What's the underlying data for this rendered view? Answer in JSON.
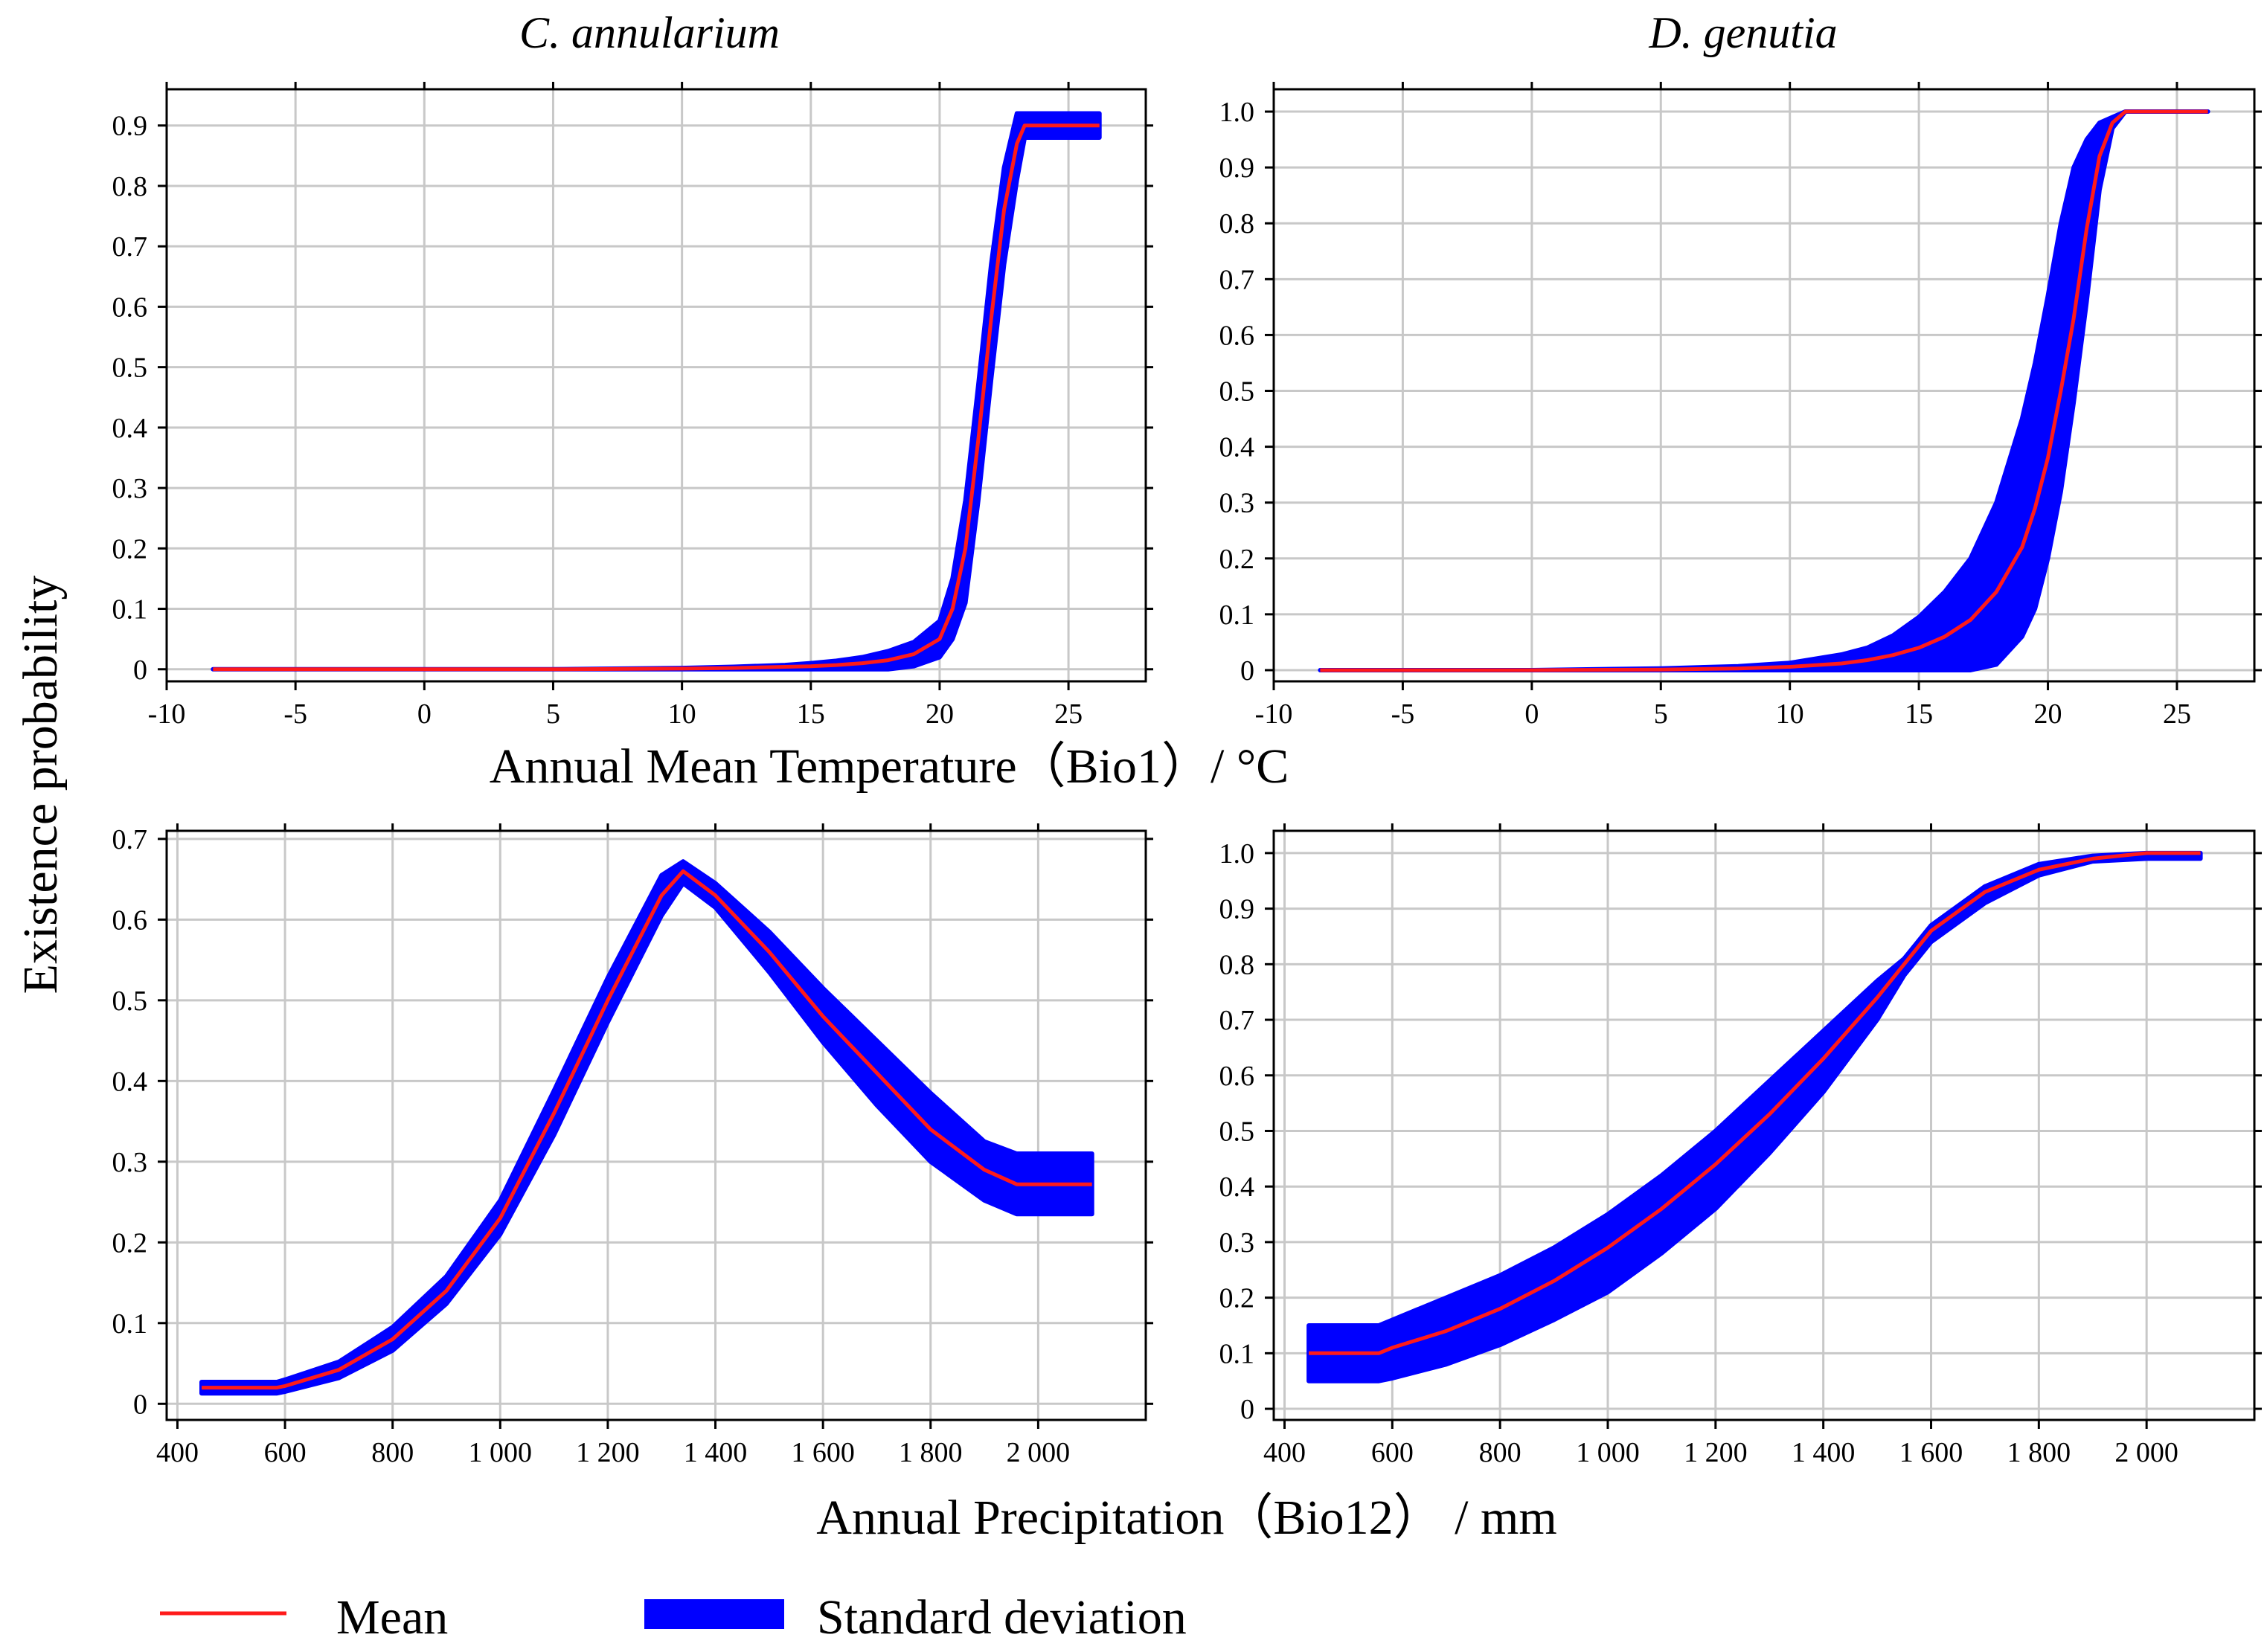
{
  "colors": {
    "mean_line": "#ff1a1a",
    "std_band": "#0000ff",
    "grid": "#c8c8c8",
    "frame": "#000000"
  },
  "figure": {
    "y_label": "Existence probability",
    "temperature_x_label": "Annual Mean Temperature（Bio1）/ °C",
    "precipitation_x_label": "Annual Precipitation（Bio12） / mm"
  },
  "legend": {
    "mean_label": "Mean",
    "std_label": "Standard deviation"
  },
  "chart_data": [
    {
      "id": "temp-c-annularium",
      "type": "line",
      "title": "C. annularium",
      "xlabel": "Annual Mean Temperature（Bio1）/ °C",
      "ylabel": "Existence probability",
      "xlim": [
        -10,
        28
      ],
      "ylim": [
        -0.02,
        0.96
      ],
      "grid": true,
      "x_ticks": [
        -10,
        -5,
        0,
        5,
        10,
        15,
        20,
        25
      ],
      "x_tick_labels": [
        "-10",
        "-5",
        "0",
        "5",
        "10",
        "15",
        "20",
        "25"
      ],
      "y_ticks": [
        0,
        0.1,
        0.2,
        0.3,
        0.4,
        0.5,
        0.6,
        0.7,
        0.8,
        0.9
      ],
      "y_tick_labels": [
        "0",
        "0.1",
        "0.2",
        "0.3",
        "0.4",
        "0.5",
        "0.6",
        "0.7",
        "0.8",
        "0.9"
      ],
      "series": [
        {
          "name": "Mean",
          "x": [
            -8.2,
            0,
            5,
            10,
            12,
            14,
            15,
            16,
            17,
            18,
            19,
            20,
            20.5,
            21,
            21.5,
            22,
            22.5,
            23,
            23.3,
            24,
            26.2
          ],
          "y": [
            0,
            0,
            0,
            0.001,
            0.002,
            0.004,
            0.005,
            0.007,
            0.01,
            0.015,
            0.025,
            0.05,
            0.1,
            0.2,
            0.38,
            0.58,
            0.76,
            0.87,
            0.9,
            0.9,
            0.9
          ]
        },
        {
          "name": "Standard deviation",
          "x": [
            -8.2,
            0,
            5,
            10,
            12,
            14,
            15,
            16,
            17,
            18,
            19,
            20,
            20.5,
            21,
            21.5,
            22,
            22.5,
            23,
            23.3,
            24,
            26.2
          ],
          "upper": [
            0,
            0,
            0,
            0.002,
            0.004,
            0.007,
            0.01,
            0.014,
            0.02,
            0.03,
            0.045,
            0.08,
            0.15,
            0.28,
            0.47,
            0.67,
            0.83,
            0.92,
            0.92,
            0.92,
            0.92
          ],
          "lower": [
            0,
            0,
            0,
            0,
            0,
            0,
            0,
            0,
            0,
            0,
            0.005,
            0.02,
            0.05,
            0.11,
            0.28,
            0.48,
            0.67,
            0.81,
            0.88,
            0.88,
            0.88
          ]
        }
      ]
    },
    {
      "id": "temp-d-genutia",
      "type": "line",
      "title": "D. genutia",
      "xlabel": "Annual Mean Temperature（Bio1）/ °C",
      "ylabel": "Existence probability",
      "xlim": [
        -10,
        28
      ],
      "ylim": [
        -0.02,
        1.04
      ],
      "grid": true,
      "x_ticks": [
        -10,
        -5,
        0,
        5,
        10,
        15,
        20,
        25
      ],
      "x_tick_labels": [
        "-10",
        "-5",
        "0",
        "5",
        "10",
        "15",
        "20",
        "25"
      ],
      "y_ticks": [
        0,
        0.1,
        0.2,
        0.3,
        0.4,
        0.5,
        0.6,
        0.7,
        0.8,
        0.9,
        1.0
      ],
      "y_tick_labels": [
        "0",
        "0.1",
        "0.2",
        "0.3",
        "0.4",
        "0.5",
        "0.6",
        "0.7",
        "0.8",
        "0.9",
        "1.0"
      ],
      "series": [
        {
          "name": "Mean",
          "x": [
            -8.2,
            0,
            5,
            8,
            10,
            12,
            13,
            14,
            15,
            16,
            17,
            18,
            19,
            19.5,
            20,
            20.5,
            21,
            21.5,
            22,
            22.5,
            23,
            24,
            26.2
          ],
          "y": [
            0,
            0,
            0.001,
            0.003,
            0.006,
            0.012,
            0.018,
            0.027,
            0.04,
            0.06,
            0.09,
            0.14,
            0.22,
            0.29,
            0.38,
            0.5,
            0.63,
            0.79,
            0.92,
            0.98,
            1.0,
            1.0,
            1.0
          ]
        },
        {
          "name": "Standard deviation",
          "x": [
            -8.2,
            0,
            5,
            8,
            10,
            12,
            13,
            14,
            15,
            16,
            17,
            18,
            19,
            19.5,
            20,
            20.5,
            21,
            21.5,
            22,
            22.5,
            23,
            24,
            26.2
          ],
          "upper": [
            0,
            0,
            0.003,
            0.007,
            0.013,
            0.028,
            0.04,
            0.062,
            0.095,
            0.14,
            0.2,
            0.3,
            0.45,
            0.55,
            0.67,
            0.8,
            0.9,
            0.95,
            0.98,
            0.99,
            1.0,
            1.0,
            1.0
          ],
          "lower": [
            0,
            0,
            0,
            0,
            0,
            0,
            0,
            0,
            0,
            0,
            0,
            0.01,
            0.06,
            0.11,
            0.2,
            0.32,
            0.48,
            0.66,
            0.86,
            0.97,
            1.0,
            1.0,
            1.0
          ]
        }
      ]
    },
    {
      "id": "precip-c-annularium",
      "type": "line",
      "title": "",
      "xlabel": "Annual Precipitation（Bio12） / mm",
      "ylabel": "Existence probability",
      "xlim": [
        380,
        2200
      ],
      "ylim": [
        -0.02,
        0.71
      ],
      "grid": true,
      "x_ticks": [
        400,
        600,
        800,
        1000,
        1200,
        1400,
        1600,
        1800,
        2000
      ],
      "x_tick_labels": [
        "400",
        "600",
        "800",
        "1 000",
        "1 200",
        "1 400",
        "1 600",
        "1 800",
        "2 000"
      ],
      "y_ticks": [
        0,
        0.1,
        0.2,
        0.3,
        0.4,
        0.5,
        0.6,
        0.7
      ],
      "y_tick_labels": [
        "0",
        "0.1",
        "0.2",
        "0.3",
        "0.4",
        "0.5",
        "0.6",
        "0.7"
      ],
      "series": [
        {
          "name": "Mean",
          "x": [
            445,
            585,
            600,
            700,
            800,
            900,
            1000,
            1100,
            1200,
            1300,
            1340,
            1400,
            1500,
            1600,
            1700,
            1800,
            1900,
            1960,
            2100
          ],
          "y": [
            0.02,
            0.02,
            0.022,
            0.042,
            0.08,
            0.14,
            0.23,
            0.36,
            0.5,
            0.63,
            0.66,
            0.63,
            0.56,
            0.48,
            0.41,
            0.34,
            0.29,
            0.272,
            0.272
          ]
        },
        {
          "name": "Standard deviation",
          "x": [
            445,
            585,
            600,
            700,
            800,
            900,
            1000,
            1100,
            1200,
            1300,
            1340,
            1400,
            1500,
            1600,
            1700,
            1800,
            1900,
            1960,
            2100
          ],
          "upper": [
            0.027,
            0.027,
            0.03,
            0.052,
            0.095,
            0.158,
            0.252,
            0.388,
            0.528,
            0.655,
            0.672,
            0.645,
            0.585,
            0.515,
            0.45,
            0.385,
            0.325,
            0.31,
            0.31
          ],
          "lower": [
            0.013,
            0.013,
            0.015,
            0.032,
            0.066,
            0.124,
            0.21,
            0.333,
            0.473,
            0.605,
            0.645,
            0.615,
            0.535,
            0.448,
            0.37,
            0.3,
            0.252,
            0.235,
            0.235
          ]
        }
      ]
    },
    {
      "id": "precip-d-genutia",
      "type": "line",
      "title": "",
      "xlabel": "Annual Precipitation（Bio12） / mm",
      "ylabel": "Existence probability",
      "xlim": [
        380,
        2200
      ],
      "ylim": [
        -0.02,
        1.04
      ],
      "grid": true,
      "x_ticks": [
        400,
        600,
        800,
        1000,
        1200,
        1400,
        1600,
        1800,
        2000
      ],
      "x_tick_labels": [
        "400",
        "600",
        "800",
        "1 000",
        "1 200",
        "1 400",
        "1 600",
        "1 800",
        "2 000"
      ],
      "y_ticks": [
        0,
        0.1,
        0.2,
        0.3,
        0.4,
        0.5,
        0.6,
        0.7,
        0.8,
        0.9,
        1.0
      ],
      "y_tick_labels": [
        "0",
        "0.1",
        "0.2",
        "0.3",
        "0.4",
        "0.5",
        "0.6",
        "0.7",
        "0.8",
        "0.9",
        "1.0"
      ],
      "series": [
        {
          "name": "Mean",
          "x": [
            445,
            575,
            600,
            700,
            800,
            900,
            1000,
            1100,
            1200,
            1300,
            1400,
            1500,
            1550,
            1600,
            1700,
            1800,
            1900,
            2000,
            2100
          ],
          "y": [
            0.1,
            0.1,
            0.11,
            0.14,
            0.18,
            0.23,
            0.29,
            0.36,
            0.44,
            0.53,
            0.63,
            0.74,
            0.8,
            0.86,
            0.93,
            0.97,
            0.99,
            1.0,
            1.0
          ]
        },
        {
          "name": "Standard deviation",
          "x": [
            445,
            575,
            600,
            700,
            800,
            900,
            1000,
            1100,
            1200,
            1300,
            1400,
            1500,
            1550,
            1600,
            1700,
            1800,
            1900,
            2000,
            2100
          ],
          "upper": [
            0.15,
            0.15,
            0.16,
            0.2,
            0.24,
            0.29,
            0.35,
            0.42,
            0.5,
            0.59,
            0.68,
            0.77,
            0.81,
            0.87,
            0.94,
            0.98,
            0.995,
            1.0,
            1.0
          ],
          "lower": [
            0.05,
            0.05,
            0.055,
            0.08,
            0.115,
            0.16,
            0.21,
            0.28,
            0.36,
            0.46,
            0.57,
            0.7,
            0.78,
            0.84,
            0.91,
            0.96,
            0.985,
            0.99,
            0.99
          ]
        }
      ]
    }
  ]
}
